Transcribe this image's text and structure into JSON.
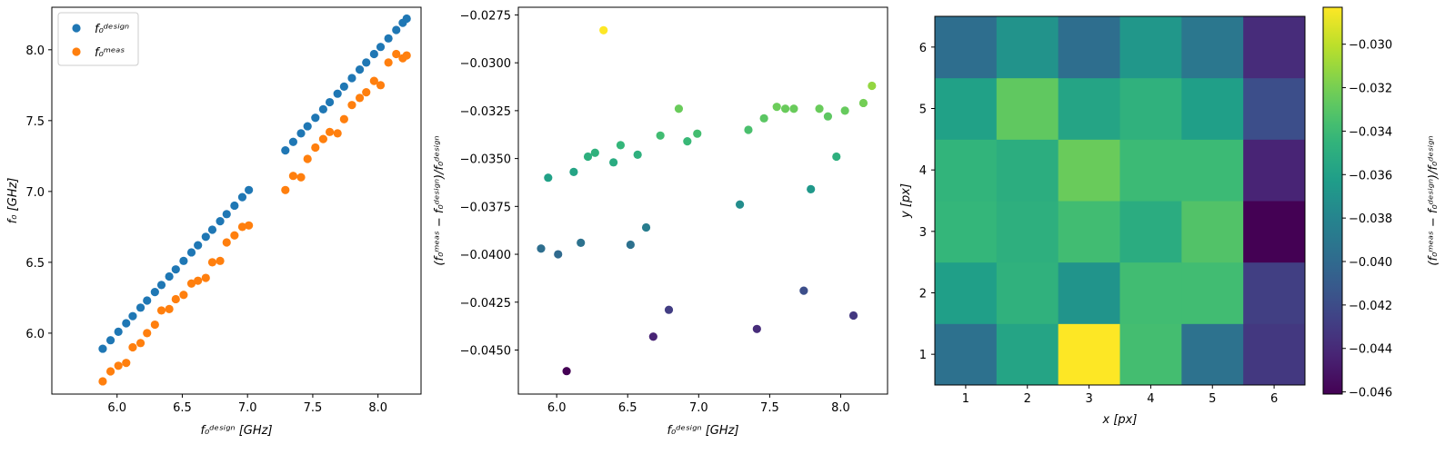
{
  "chart_data": [
    {
      "type": "scatter",
      "title": "",
      "xlabel": "f₀ᵈᵉˢⁱᵍⁿ [GHz]",
      "ylabel": "f₀ [GHz]",
      "xlim": [
        5.5,
        8.33
      ],
      "ylim": [
        5.57,
        8.3
      ],
      "xticks": [
        6.0,
        6.5,
        7.0,
        7.5,
        8.0
      ],
      "yticks": [
        6.0,
        6.5,
        7.0,
        7.5,
        8.0
      ],
      "legend_position": "top-left",
      "series": [
        {
          "name": "f₀ᵈᵉˢⁱᵍⁿ",
          "color": "#1f77b4",
          "x": [
            5.89,
            5.95,
            6.01,
            6.07,
            6.12,
            6.18,
            6.23,
            6.29,
            6.34,
            6.4,
            6.45,
            6.51,
            6.57,
            6.62,
            6.68,
            6.73,
            6.79,
            6.84,
            6.9,
            6.96,
            7.01,
            7.29,
            7.35,
            7.41,
            7.46,
            7.52,
            7.58,
            7.63,
            7.69,
            7.74,
            7.8,
            7.86,
            7.91,
            7.97,
            8.02,
            8.08,
            8.14,
            8.19,
            8.22
          ],
          "y": [
            5.89,
            5.95,
            6.01,
            6.07,
            6.12,
            6.18,
            6.23,
            6.29,
            6.34,
            6.4,
            6.45,
            6.51,
            6.57,
            6.62,
            6.68,
            6.73,
            6.79,
            6.84,
            6.9,
            6.96,
            7.01,
            7.29,
            7.35,
            7.41,
            7.46,
            7.52,
            7.58,
            7.63,
            7.69,
            7.74,
            7.8,
            7.86,
            7.91,
            7.97,
            8.02,
            8.08,
            8.14,
            8.19,
            8.22
          ]
        },
        {
          "name": "f₀ᵐᵉᵃˢ",
          "color": "#ff7f0e",
          "x": [
            5.89,
            5.95,
            6.01,
            6.07,
            6.12,
            6.18,
            6.23,
            6.29,
            6.34,
            6.4,
            6.45,
            6.51,
            6.57,
            6.62,
            6.68,
            6.73,
            6.79,
            6.84,
            6.9,
            6.96,
            7.01,
            7.29,
            7.35,
            7.41,
            7.46,
            7.52,
            7.58,
            7.63,
            7.69,
            7.74,
            7.8,
            7.86,
            7.91,
            7.97,
            8.02,
            8.08,
            8.14,
            8.19,
            8.22
          ],
          "y": [
            5.66,
            5.73,
            5.77,
            5.79,
            5.9,
            5.93,
            6.0,
            6.06,
            6.16,
            6.17,
            6.24,
            6.27,
            6.35,
            6.37,
            6.39,
            6.5,
            6.51,
            6.64,
            6.69,
            6.75,
            6.76,
            7.01,
            7.11,
            7.1,
            7.23,
            7.31,
            7.37,
            7.42,
            7.41,
            7.51,
            7.61,
            7.66,
            7.7,
            7.78,
            7.75,
            7.91,
            7.97,
            7.94,
            7.96
          ]
        }
      ]
    },
    {
      "type": "scatter",
      "title": "",
      "xlabel": "f₀ᵈᵉˢⁱᵍⁿ [GHz]",
      "ylabel": "(f₀ᵐᵉᵃˢ − f₀ᵈᵉˢⁱᵍⁿ)/f₀ᵈᵉˢⁱᵍⁿ",
      "xlim": [
        5.73,
        8.33
      ],
      "ylim": [
        -0.0473,
        -0.0271
      ],
      "xticks": [
        6.0,
        6.5,
        7.0,
        7.5,
        8.0
      ],
      "yticks": [
        -0.0275,
        -0.03,
        -0.0325,
        -0.035,
        -0.0375,
        -0.04,
        -0.0425,
        -0.045
      ],
      "ytick_labels": [
        "−0.0275",
        "−0.0300",
        "−0.0325",
        "−0.0350",
        "−0.0375",
        "−0.0400",
        "−0.0425",
        "−0.0450"
      ],
      "color_scale": "viridis",
      "color_range": [
        -0.0461,
        -0.0283
      ],
      "x": [
        5.89,
        5.94,
        6.01,
        6.07,
        6.12,
        6.17,
        6.22,
        6.27,
        6.33,
        6.4,
        6.45,
        6.52,
        6.57,
        6.63,
        6.68,
        6.73,
        6.79,
        6.86,
        6.92,
        6.99,
        7.29,
        7.35,
        7.41,
        7.46,
        7.55,
        7.61,
        7.67,
        7.74,
        7.79,
        7.85,
        7.91,
        7.97,
        8.03,
        8.09,
        8.16,
        8.22
      ],
      "y": [
        -0.0397,
        -0.036,
        -0.04,
        -0.0461,
        -0.0357,
        -0.0394,
        -0.0349,
        -0.0347,
        -0.0283,
        -0.0352,
        -0.0343,
        -0.0395,
        -0.0348,
        -0.0386,
        -0.0443,
        -0.0338,
        -0.0429,
        -0.0324,
        -0.0341,
        -0.0337,
        -0.0374,
        -0.0335,
        -0.0439,
        -0.0329,
        -0.0323,
        -0.0324,
        -0.0324,
        -0.0419,
        -0.0366,
        -0.0324,
        -0.0328,
        -0.0349,
        -0.0325,
        -0.0432,
        -0.0321,
        -0.0312
      ]
    },
    {
      "type": "heatmap",
      "title": "",
      "xlabel": "x [px]",
      "ylabel": "y [px]",
      "colorbar_label": "(f₀ᵐᵉᵃˢ − f₀ᵈᵉˢⁱᵍⁿ)/f₀ᵈᵉˢⁱᵍⁿ",
      "color_scale": "viridis",
      "color_range": [
        -0.0461,
        -0.0283
      ],
      "colorbar_ticks": [
        -0.03,
        -0.032,
        -0.034,
        -0.036,
        -0.038,
        -0.04,
        -0.042,
        -0.044,
        -0.046
      ],
      "colorbar_tick_labels": [
        "−0.030",
        "−0.032",
        "−0.034",
        "−0.036",
        "−0.038",
        "−0.040",
        "−0.042",
        "−0.044",
        "−0.046"
      ],
      "x": [
        1,
        2,
        3,
        4,
        5,
        6
      ],
      "y": [
        1,
        2,
        3,
        4,
        5,
        6
      ],
      "values_by_row_y": [
        [
          -0.0395,
          -0.0357,
          -0.0283,
          -0.0337,
          -0.0394,
          -0.0432
        ],
        [
          -0.0361,
          -0.0347,
          -0.0369,
          -0.0338,
          -0.0338,
          -0.0428
        ],
        [
          -0.0343,
          -0.0349,
          -0.0338,
          -0.0351,
          -0.0332,
          -0.0461
        ],
        [
          -0.0345,
          -0.035,
          -0.0324,
          -0.034,
          -0.034,
          -0.0443
        ],
        [
          -0.036,
          -0.0327,
          -0.0357,
          -0.0347,
          -0.0361,
          -0.0419
        ],
        [
          -0.0397,
          -0.037,
          -0.0397,
          -0.0367,
          -0.039,
          -0.0439
        ]
      ]
    }
  ]
}
